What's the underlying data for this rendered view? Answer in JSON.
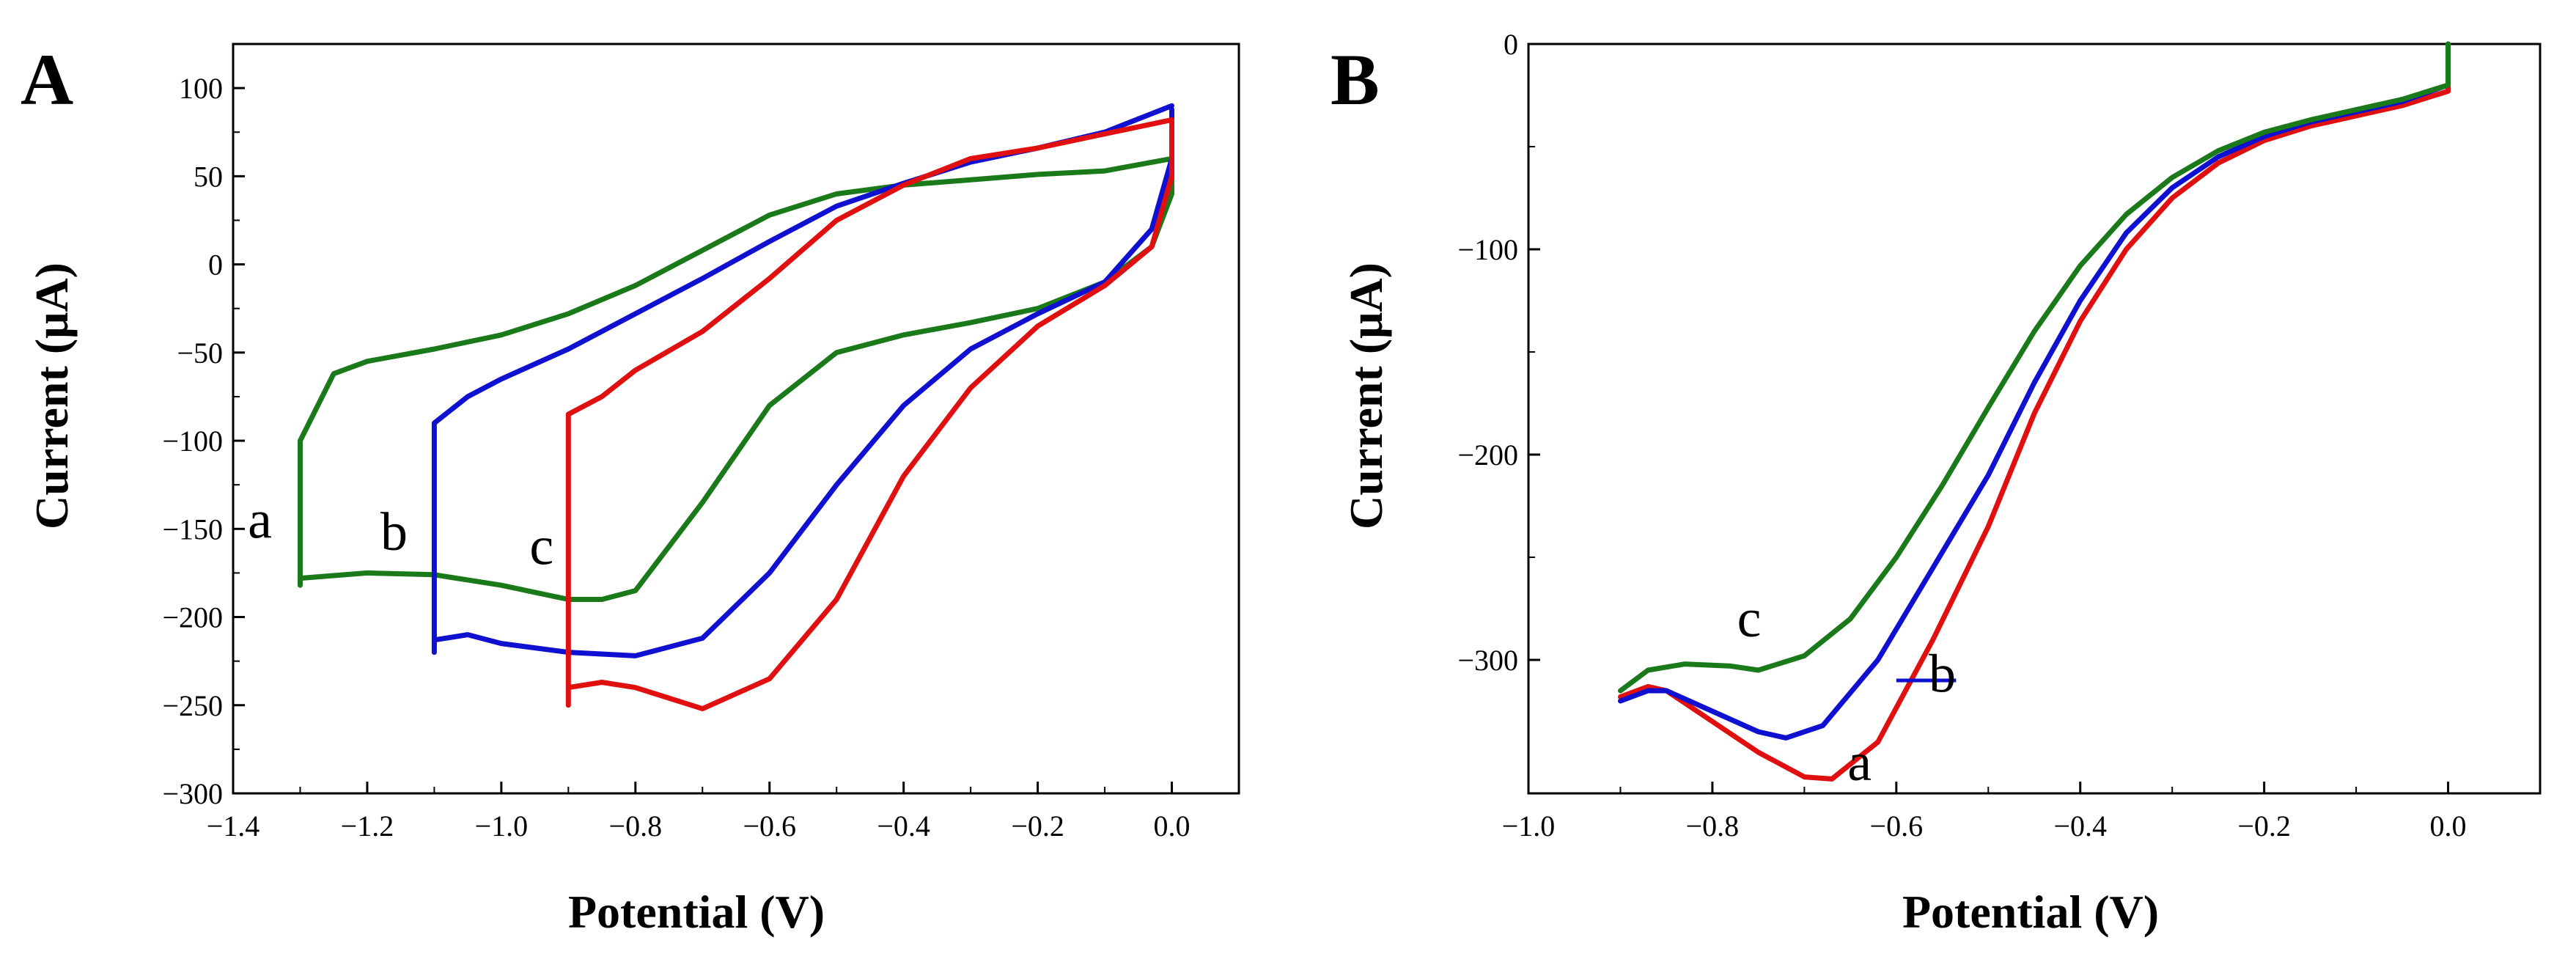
{
  "chart_data": [
    {
      "panel_label": "A",
      "type": "line",
      "xlabel": "Potential (V)",
      "ylabel": "Current (μA)",
      "xlim": [
        -1.4,
        0.1
      ],
      "ylim": [
        -300,
        125
      ],
      "xticks": [
        -1.4,
        -1.2,
        -1.0,
        -0.8,
        -0.6,
        -0.4,
        -0.2,
        0.0
      ],
      "xtick_labels": [
        "−1.4",
        "−1.2",
        "−1.0",
        "−0.8",
        "−0.6",
        "−0.4",
        "−0.2",
        "0.0"
      ],
      "yticks": [
        100,
        50,
        0,
        -50,
        -100,
        -150,
        -200,
        -250,
        -300
      ],
      "ytick_labels": [
        "100",
        "50",
        "0",
        "−50",
        "−100",
        "−150",
        "−200",
        "−250",
        "−300"
      ],
      "series": [
        {
          "name": "a",
          "color": "#1a7a1a",
          "x": [
            0.0,
            0.0,
            -0.03,
            -0.1,
            -0.2,
            -0.3,
            -0.4,
            -0.5,
            -0.6,
            -0.7,
            -0.8,
            -0.85,
            -0.9,
            -1.0,
            -1.1,
            -1.2,
            -1.3,
            -1.3,
            -1.3,
            -1.25,
            -1.2,
            -1.1,
            -1.0,
            -0.9,
            -0.8,
            -0.7,
            -0.6,
            -0.5,
            -0.4,
            -0.3,
            -0.2,
            -0.1,
            0.0
          ],
          "y": [
            60,
            40,
            10,
            -10,
            -25,
            -33,
            -40,
            -50,
            -80,
            -135,
            -185,
            -190,
            -190,
            -182,
            -176,
            -175,
            -178,
            -182,
            -100,
            -62,
            -55,
            -48,
            -40,
            -28,
            -12,
            8,
            28,
            40,
            45,
            48,
            51,
            53,
            60
          ]
        },
        {
          "name": "b",
          "color": "#1010d0",
          "x": [
            0.0,
            0.0,
            -0.03,
            -0.1,
            -0.2,
            -0.3,
            -0.4,
            -0.5,
            -0.6,
            -0.7,
            -0.8,
            -0.9,
            -1.0,
            -1.05,
            -1.1,
            -1.1,
            -1.1,
            -1.05,
            -1.0,
            -0.9,
            -0.8,
            -0.7,
            -0.6,
            -0.5,
            -0.4,
            -0.3,
            -0.2,
            -0.1,
            0.0
          ],
          "y": [
            88,
            60,
            20,
            -10,
            -28,
            -48,
            -80,
            -125,
            -175,
            -212,
            -222,
            -220,
            -215,
            -210,
            -213,
            -220,
            -90,
            -75,
            -65,
            -48,
            -28,
            -8,
            13,
            33,
            46,
            58,
            66,
            75,
            90
          ]
        },
        {
          "name": "c",
          "color": "#e01010",
          "x": [
            0.0,
            0.0,
            -0.03,
            -0.1,
            -0.2,
            -0.3,
            -0.4,
            -0.5,
            -0.6,
            -0.7,
            -0.8,
            -0.85,
            -0.9,
            -0.9,
            -0.9,
            -0.85,
            -0.8,
            -0.7,
            -0.6,
            -0.5,
            -0.4,
            -0.3,
            -0.2,
            -0.1,
            0.0
          ],
          "y": [
            82,
            50,
            10,
            -12,
            -35,
            -70,
            -120,
            -190,
            -235,
            -252,
            -240,
            -237,
            -240,
            -250,
            -85,
            -75,
            -60,
            -38,
            -8,
            25,
            45,
            60,
            66,
            74,
            82
          ]
        }
      ],
      "curve_labels": [
        {
          "text": "a",
          "x": -1.36,
          "y": -145
        },
        {
          "text": "b",
          "x": -1.16,
          "y": -152
        },
        {
          "text": "c",
          "x": -0.94,
          "y": -160
        }
      ]
    },
    {
      "panel_label": "B",
      "type": "line",
      "xlabel": "Potential (V)",
      "ylabel": "Current (μA)",
      "xlim": [
        -1.0,
        0.1
      ],
      "ylim": [
        -365,
        0
      ],
      "xticks": [
        -1.0,
        -0.8,
        -0.6,
        -0.4,
        -0.2,
        0.0
      ],
      "xtick_labels": [
        "−1.0",
        "−0.8",
        "−0.6",
        "−0.4",
        "−0.2",
        "0.0"
      ],
      "yticks": [
        0,
        -100,
        -200,
        -300
      ],
      "ytick_labels": [
        "0",
        "−100",
        "−200",
        "−300"
      ],
      "series": [
        {
          "name": "a",
          "color": "#e01010",
          "x": [
            -0.9,
            -0.87,
            -0.85,
            -0.8,
            -0.75,
            -0.7,
            -0.67,
            -0.62,
            -0.56,
            -0.5,
            -0.45,
            -0.4,
            -0.35,
            -0.3,
            -0.25,
            -0.2,
            -0.15,
            -0.1,
            -0.05,
            0.0,
            0.0
          ],
          "y": [
            -318,
            -313,
            -315,
            -330,
            -345,
            -357,
            -358,
            -340,
            -290,
            -235,
            -180,
            -135,
            -100,
            -75,
            -58,
            -47,
            -40,
            -35,
            -30,
            -23,
            0
          ]
        },
        {
          "name": "b",
          "color": "#1010d0",
          "x": [
            -0.9,
            -0.87,
            -0.85,
            -0.8,
            -0.75,
            -0.72,
            -0.68,
            -0.62,
            -0.56,
            -0.5,
            -0.45,
            -0.4,
            -0.35,
            -0.3,
            -0.25,
            -0.2,
            -0.15,
            -0.1,
            -0.05,
            0.0,
            0.0
          ],
          "y": [
            -320,
            -315,
            -315,
            -325,
            -335,
            -338,
            -332,
            -300,
            -255,
            -210,
            -165,
            -125,
            -92,
            -70,
            -55,
            -45,
            -38,
            -33,
            -28,
            -20,
            0
          ]
        },
        {
          "name": "c",
          "color": "#1a7a1a",
          "x": [
            -0.9,
            -0.87,
            -0.83,
            -0.78,
            -0.75,
            -0.7,
            -0.65,
            -0.6,
            -0.55,
            -0.5,
            -0.45,
            -0.4,
            -0.35,
            -0.3,
            -0.25,
            -0.2,
            -0.15,
            -0.1,
            -0.05,
            0.0,
            0.0
          ],
          "y": [
            -315,
            -305,
            -302,
            -303,
            -305,
            -298,
            -280,
            -250,
            -215,
            -177,
            -140,
            -108,
            -83,
            -65,
            -52,
            -43,
            -37,
            -32,
            -27,
            -20,
            0
          ]
        }
      ],
      "curve_labels": [
        {
          "text": "c",
          "x": -0.76,
          "y": -280
        },
        {
          "text": "b",
          "x": -0.55,
          "y": -307
        },
        {
          "text": "a",
          "x": -0.64,
          "y": -350
        }
      ],
      "leader_line": {
        "x1": -0.6,
        "y1": -310,
        "x2": -0.535,
        "y2": -310,
        "color": "#1010d0"
      }
    }
  ]
}
